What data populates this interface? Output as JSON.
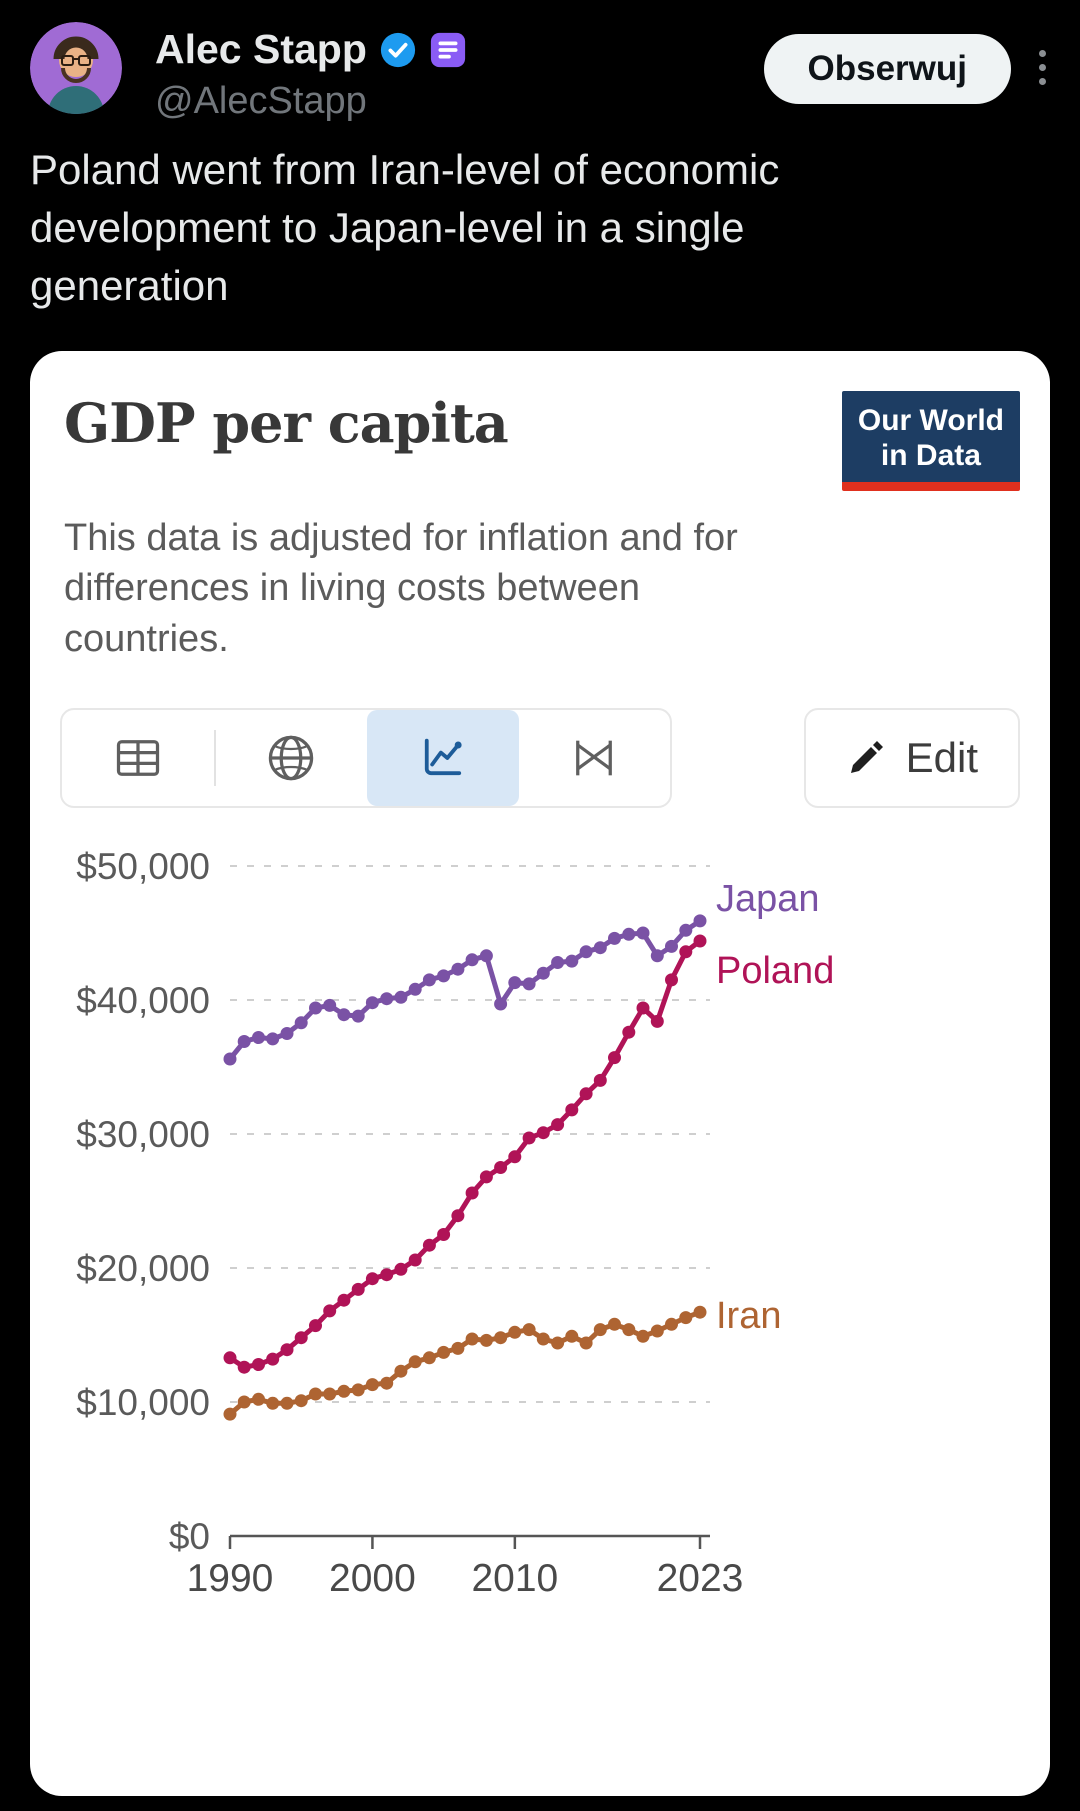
{
  "tweet": {
    "author_name": "Alec Stapp",
    "author_handle": "@AlecStapp",
    "follow_button_label": "Obserwuj",
    "body": "Poland went from Iran-level of economic development to Japan-level in a single generation"
  },
  "colors": {
    "verified_blue": "#1D9BF0",
    "app_badge_purple": "#8A5CF5",
    "follow_pill_bg": "#EFF3F4",
    "page_bg": "#000000",
    "card_bg": "#FFFFFF",
    "logo_navy": "#1D3D63",
    "logo_red": "#E0301E"
  },
  "card": {
    "title": "GDP per capita",
    "subtitle": "This data is adjusted for inflation and for differences in living costs between countries.",
    "logo": {
      "line1": "Our World",
      "line2": "in Data"
    },
    "toolbar": {
      "edit_label": "Edit"
    }
  },
  "chart_data": {
    "type": "line",
    "title": "GDP per capita",
    "subtitle": "This data is adjusted for inflation and for differences in living costs between countries.",
    "grid": "dashed-horizontal",
    "legend_position": "end-of-line-labels",
    "ylim": [
      0,
      50000
    ],
    "y_ticks": [
      0,
      10000,
      20000,
      30000,
      40000,
      50000
    ],
    "y_tick_labels": [
      "$0",
      "$10,000",
      "$20,000",
      "$30,000",
      "$40,000",
      "$50,000"
    ],
    "x_ticks": [
      1990,
      2000,
      2010,
      2023
    ],
    "x": [
      1990,
      1991,
      1992,
      1993,
      1994,
      1995,
      1996,
      1997,
      1998,
      1999,
      2000,
      2001,
      2002,
      2003,
      2004,
      2005,
      2006,
      2007,
      2008,
      2009,
      2010,
      2011,
      2012,
      2013,
      2014,
      2015,
      2016,
      2017,
      2018,
      2019,
      2020,
      2021,
      2022,
      2023
    ],
    "series": [
      {
        "name": "Japan",
        "color": "#7A52A5",
        "values": [
          35600,
          36900,
          37200,
          37100,
          37500,
          38300,
          39400,
          39600,
          38900,
          38800,
          39800,
          40100,
          40200,
          40800,
          41500,
          41800,
          42300,
          43000,
          43300,
          39700,
          41300,
          41200,
          42000,
          42800,
          42900,
          43600,
          43900,
          44600,
          44900,
          45000,
          43300,
          44000,
          45200,
          45900
        ]
      },
      {
        "name": "Poland",
        "color": "#B01357",
        "values": [
          13300,
          12600,
          12800,
          13200,
          13900,
          14800,
          15700,
          16800,
          17600,
          18400,
          19200,
          19500,
          19900,
          20600,
          21700,
          22500,
          23900,
          25600,
          26800,
          27500,
          28300,
          29700,
          30100,
          30700,
          31800,
          33000,
          34000,
          35700,
          37600,
          39400,
          38400,
          41500,
          43600,
          44400
        ]
      },
      {
        "name": "Iran",
        "color": "#AE6432",
        "values": [
          9100,
          10000,
          10200,
          9900,
          9900,
          10100,
          10600,
          10600,
          10800,
          10900,
          11300,
          11400,
          12300,
          13000,
          13300,
          13700,
          14000,
          14700,
          14600,
          14800,
          15200,
          15400,
          14700,
          14400,
          14900,
          14400,
          15400,
          15800,
          15400,
          14900,
          15300,
          15800,
          16300,
          16700
        ]
      }
    ]
  }
}
